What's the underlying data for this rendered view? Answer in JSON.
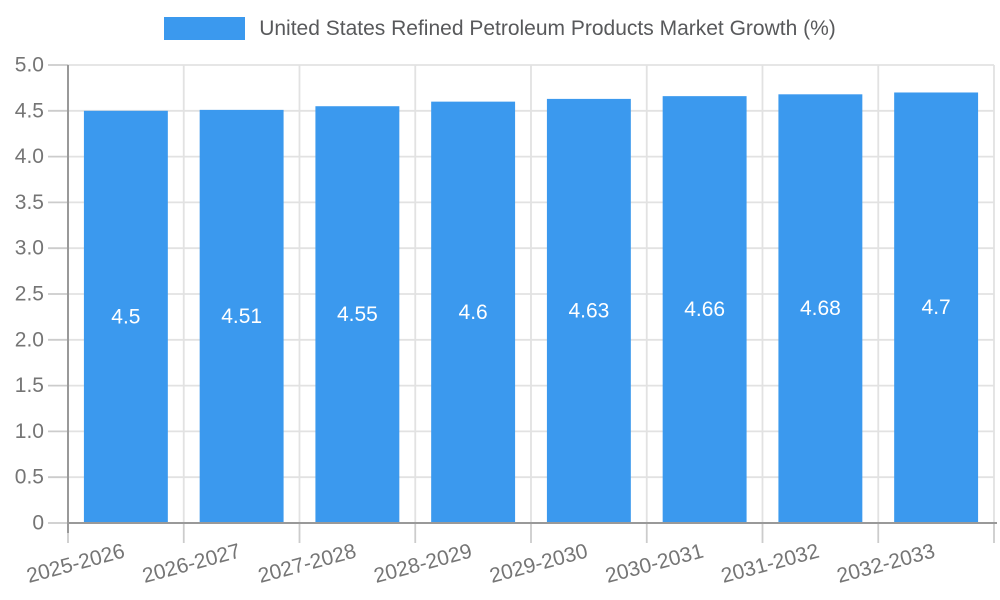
{
  "chart_data": {
    "type": "bar",
    "title": "United States Refined Petroleum Products Market Growth (%)",
    "categories": [
      "2025-2026",
      "2026-2027",
      "2027-2028",
      "2028-2029",
      "2029-2030",
      "2030-2031",
      "2031-2032",
      "2032-2033"
    ],
    "values": [
      4.5,
      4.51,
      4.55,
      4.6,
      4.63,
      4.66,
      4.68,
      4.7
    ],
    "value_labels": [
      "4.5",
      "4.51",
      "4.55",
      "4.6",
      "4.63",
      "4.66",
      "4.68",
      "4.7"
    ],
    "xlabel": "",
    "ylabel": "",
    "ylim": [
      0,
      5
    ],
    "ytick_labels": [
      "0",
      "0.5",
      "1.0",
      "1.5",
      "2.0",
      "2.5",
      "3.0",
      "3.5",
      "4.0",
      "4.5",
      "5.0"
    ],
    "grid": true,
    "legend_position": "top",
    "colors": {
      "bar": "#3b99ee",
      "grid": "#e2e2e2",
      "tick": "#cccccc",
      "axis": "#999999",
      "tick_label": "#757575",
      "title": "#58595b",
      "value_label": "#ffffff",
      "background": "#ffffff"
    }
  }
}
